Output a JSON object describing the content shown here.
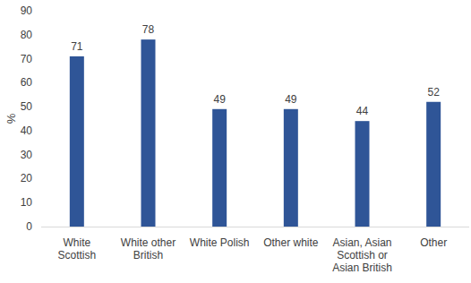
{
  "chart_data": {
    "type": "bar",
    "y_label": "%",
    "categories": [
      "White Scottish",
      "White other British",
      "White Polish",
      "Other white",
      "Asian, Asian Scottish or Asian British",
      "Other"
    ],
    "values": [
      71,
      78,
      49,
      49,
      44,
      52
    ],
    "color": "#2f5597",
    "ylim": [
      0,
      90
    ],
    "yticks": [
      0,
      10,
      20,
      30,
      40,
      50,
      60,
      70,
      80,
      90
    ],
    "grid": false,
    "data_labels": true
  }
}
